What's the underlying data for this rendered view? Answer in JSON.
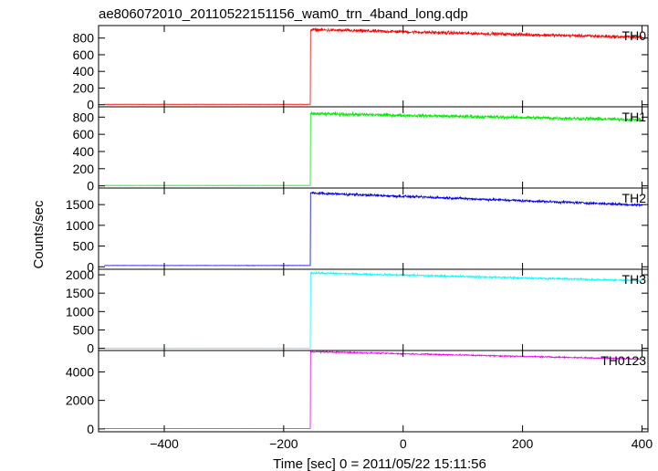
{
  "chart_data": {
    "type": "line",
    "title": "ae806072010_20110522151156_wam0_trn_4band_long.qdp",
    "xlabel": "Time [sec] 0 = 2011/05/22 15:11:56",
    "ylabel": "Counts/sec",
    "xlim": [
      -510,
      410
    ],
    "xticks": [
      -400,
      -200,
      0,
      200,
      400
    ],
    "grid": false,
    "legend": "panel labels top-right",
    "step_time": -155,
    "panels": [
      {
        "name": "TH0",
        "color": "#ff0000",
        "ylim": [
          -25,
          950
        ],
        "yticks": [
          0,
          200,
          400,
          600,
          800
        ],
        "series": {
          "pre_level": 5,
          "pre_noise": 2,
          "post_start": 900,
          "post_end": 810,
          "post_noise": 30
        }
      },
      {
        "name": "TH1",
        "color": "#00ee00",
        "ylim": [
          -25,
          920
        ],
        "yticks": [
          0,
          200,
          400,
          600,
          800
        ],
        "series": {
          "pre_level": 5,
          "pre_noise": 2,
          "post_start": 840,
          "post_end": 770,
          "post_noise": 30
        }
      },
      {
        "name": "TH2",
        "color": "#0000ee",
        "ylim": [
          -60,
          1900
        ],
        "yticks": [
          0,
          500,
          1000,
          1500
        ],
        "series": {
          "pre_level": 30,
          "pre_noise": 5,
          "post_start": 1780,
          "post_end": 1490,
          "post_noise": 45
        }
      },
      {
        "name": "TH3",
        "color": "#00ffff",
        "ylim": [
          -60,
          2150
        ],
        "yticks": [
          0,
          500,
          1000,
          1500,
          2000
        ],
        "series": {
          "pre_level": 5,
          "pre_noise": 2,
          "post_start": 2050,
          "post_end": 1840,
          "post_noise": 40
        }
      },
      {
        "name": "TH0123",
        "color": "#ee00ee",
        "ylim": [
          -200,
          5500
        ],
        "yticks": [
          0,
          2000,
          4000
        ],
        "series": {
          "pre_level": 30,
          "pre_noise": 5,
          "post_start": 5420,
          "post_end": 4900,
          "post_noise": 70
        }
      }
    ]
  }
}
